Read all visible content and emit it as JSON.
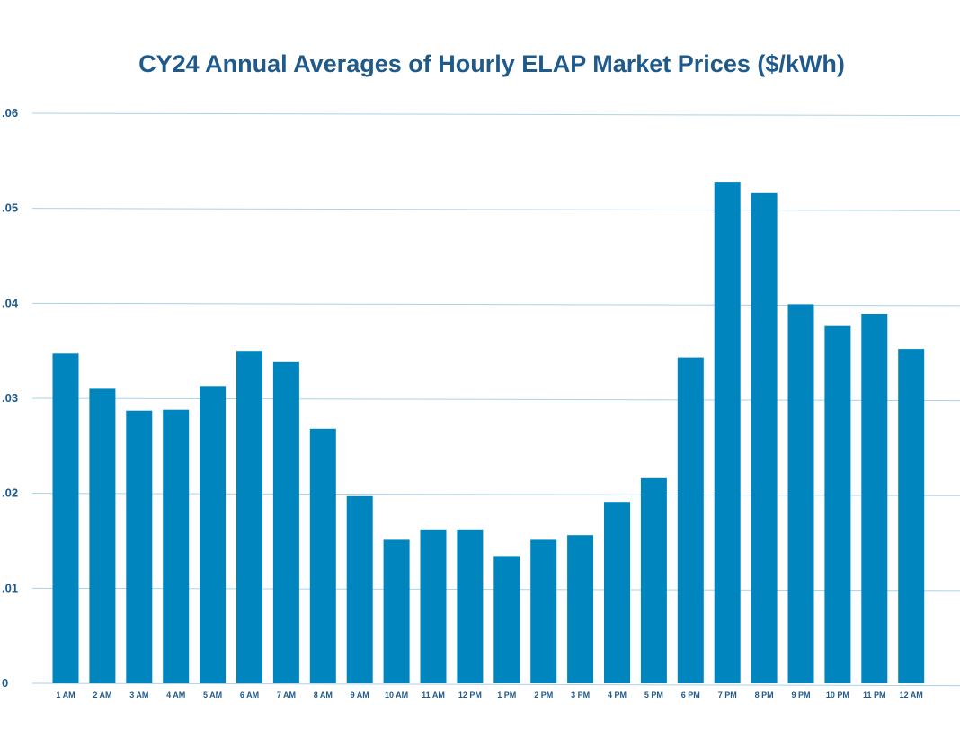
{
  "chart_data": {
    "type": "bar",
    "title": "CY24 Annual Averages of Hourly ELAP Market Prices ($/kWh)",
    "xlabel": "",
    "ylabel": "",
    "ylim": [
      0,
      0.06
    ],
    "grid": true,
    "bar_color": "#0185bf",
    "y_ticks": [
      {
        "value": 0,
        "label": "0"
      },
      {
        "value": 0.01,
        "label": ".01"
      },
      {
        "value": 0.02,
        "label": ".02"
      },
      {
        "value": 0.03,
        "label": ".03"
      },
      {
        "value": 0.04,
        "label": ".04"
      },
      {
        "value": 0.05,
        "label": ".05"
      },
      {
        "value": 0.06,
        "label": ".06"
      }
    ],
    "categories": [
      "1 AM",
      "2 AM",
      "3 AM",
      "4 AM",
      "5 AM",
      "6 AM",
      "7 AM",
      "8 AM",
      "9 AM",
      "10 AM",
      "11 AM",
      "12 PM",
      "1 PM",
      "2 PM",
      "3 PM",
      "4 PM",
      "5 PM",
      "6 PM",
      "7 PM",
      "8 PM",
      "9 PM",
      "10 PM",
      "11 PM",
      "12 AM"
    ],
    "values": [
      0.0347,
      0.031,
      0.0287,
      0.0288,
      0.0313,
      0.035,
      0.0338,
      0.0268,
      0.0197,
      0.0151,
      0.0162,
      0.0162,
      0.0134,
      0.0151,
      0.0156,
      0.0191,
      0.0216,
      0.0343,
      0.0528,
      0.0516,
      0.0399,
      0.0376,
      0.0389,
      0.0352
    ]
  }
}
